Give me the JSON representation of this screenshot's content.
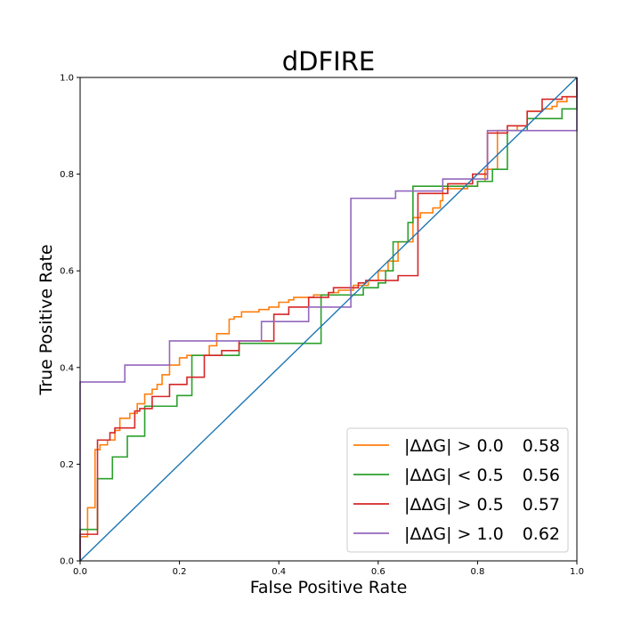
{
  "chart_data": {
    "type": "line",
    "title": "dDFIRE",
    "xlabel": "False Positive Rate",
    "ylabel": "True Positive Rate",
    "xlim": [
      0,
      1
    ],
    "ylim": [
      0,
      1
    ],
    "x_ticks": [
      "0.0",
      "0.2",
      "0.4",
      "0.6",
      "0.8",
      "1.0"
    ],
    "y_ticks": [
      "0.0",
      "0.2",
      "0.4",
      "0.6",
      "0.8",
      "1.0"
    ],
    "grid": false,
    "legend_position": "lower-right",
    "diagonal": {
      "color": "#1f77b4",
      "points": [
        [
          0,
          0
        ],
        [
          1,
          1
        ]
      ]
    },
    "series": [
      {
        "name": "|ΔΔG| > 0.0",
        "score": "0.58",
        "color": "#ff7f0e",
        "points": [
          [
            0,
            0
          ],
          [
            0,
            0.05
          ],
          [
            0.015,
            0.05
          ],
          [
            0.015,
            0.11
          ],
          [
            0.03,
            0.11
          ],
          [
            0.03,
            0.23
          ],
          [
            0.04,
            0.23
          ],
          [
            0.04,
            0.24
          ],
          [
            0.055,
            0.24
          ],
          [
            0.055,
            0.25
          ],
          [
            0.07,
            0.25
          ],
          [
            0.07,
            0.27
          ],
          [
            0.08,
            0.27
          ],
          [
            0.08,
            0.295
          ],
          [
            0.1,
            0.295
          ],
          [
            0.1,
            0.305
          ],
          [
            0.115,
            0.305
          ],
          [
            0.115,
            0.325
          ],
          [
            0.13,
            0.325
          ],
          [
            0.13,
            0.345
          ],
          [
            0.145,
            0.345
          ],
          [
            0.145,
            0.355
          ],
          [
            0.155,
            0.355
          ],
          [
            0.155,
            0.365
          ],
          [
            0.165,
            0.365
          ],
          [
            0.165,
            0.385
          ],
          [
            0.18,
            0.385
          ],
          [
            0.18,
            0.405
          ],
          [
            0.2,
            0.405
          ],
          [
            0.2,
            0.42
          ],
          [
            0.215,
            0.42
          ],
          [
            0.215,
            0.425
          ],
          [
            0.26,
            0.425
          ],
          [
            0.26,
            0.445
          ],
          [
            0.275,
            0.445
          ],
          [
            0.275,
            0.47
          ],
          [
            0.3,
            0.47
          ],
          [
            0.3,
            0.5
          ],
          [
            0.31,
            0.5
          ],
          [
            0.31,
            0.505
          ],
          [
            0.325,
            0.505
          ],
          [
            0.325,
            0.515
          ],
          [
            0.36,
            0.515
          ],
          [
            0.36,
            0.52
          ],
          [
            0.38,
            0.52
          ],
          [
            0.38,
            0.525
          ],
          [
            0.4,
            0.525
          ],
          [
            0.4,
            0.535
          ],
          [
            0.42,
            0.535
          ],
          [
            0.42,
            0.54
          ],
          [
            0.43,
            0.54
          ],
          [
            0.43,
            0.545
          ],
          [
            0.47,
            0.545
          ],
          [
            0.47,
            0.55
          ],
          [
            0.5,
            0.55
          ],
          [
            0.5,
            0.555
          ],
          [
            0.52,
            0.555
          ],
          [
            0.52,
            0.56
          ],
          [
            0.55,
            0.56
          ],
          [
            0.55,
            0.57
          ],
          [
            0.58,
            0.57
          ],
          [
            0.58,
            0.58
          ],
          [
            0.6,
            0.58
          ],
          [
            0.6,
            0.6
          ],
          [
            0.62,
            0.6
          ],
          [
            0.62,
            0.62
          ],
          [
            0.64,
            0.62
          ],
          [
            0.64,
            0.66
          ],
          [
            0.67,
            0.66
          ],
          [
            0.67,
            0.71
          ],
          [
            0.685,
            0.71
          ],
          [
            0.685,
            0.72
          ],
          [
            0.71,
            0.72
          ],
          [
            0.71,
            0.73
          ],
          [
            0.725,
            0.73
          ],
          [
            0.725,
            0.745
          ],
          [
            0.73,
            0.745
          ],
          [
            0.73,
            0.77
          ],
          [
            0.78,
            0.77
          ],
          [
            0.78,
            0.775
          ],
          [
            0.8,
            0.775
          ],
          [
            0.8,
            0.785
          ],
          [
            0.815,
            0.785
          ],
          [
            0.815,
            0.81
          ],
          [
            0.84,
            0.81
          ],
          [
            0.84,
            0.89
          ],
          [
            0.88,
            0.89
          ],
          [
            0.88,
            0.9
          ],
          [
            0.9,
            0.9
          ],
          [
            0.9,
            0.93
          ],
          [
            0.93,
            0.93
          ],
          [
            0.93,
            0.935
          ],
          [
            0.95,
            0.935
          ],
          [
            0.95,
            0.94
          ],
          [
            0.96,
            0.94
          ],
          [
            0.96,
            0.95
          ],
          [
            0.98,
            0.95
          ],
          [
            0.98,
            0.96
          ],
          [
            1.0,
            0.96
          ],
          [
            1.0,
            1.0
          ]
        ]
      },
      {
        "name": "|ΔΔG| < 0.5",
        "score": "0.56",
        "color": "#2ca02c",
        "points": [
          [
            0,
            0
          ],
          [
            0,
            0.065
          ],
          [
            0.035,
            0.065
          ],
          [
            0.035,
            0.17
          ],
          [
            0.065,
            0.17
          ],
          [
            0.065,
            0.215
          ],
          [
            0.095,
            0.215
          ],
          [
            0.095,
            0.258
          ],
          [
            0.13,
            0.258
          ],
          [
            0.13,
            0.32
          ],
          [
            0.195,
            0.32
          ],
          [
            0.195,
            0.342
          ],
          [
            0.225,
            0.342
          ],
          [
            0.225,
            0.425
          ],
          [
            0.32,
            0.425
          ],
          [
            0.32,
            0.45
          ],
          [
            0.36,
            0.45
          ],
          [
            0.36,
            0.45
          ],
          [
            0.485,
            0.45
          ],
          [
            0.485,
            0.55
          ],
          [
            0.57,
            0.55
          ],
          [
            0.57,
            0.565
          ],
          [
            0.6,
            0.565
          ],
          [
            0.6,
            0.575
          ],
          [
            0.615,
            0.575
          ],
          [
            0.615,
            0.6
          ],
          [
            0.63,
            0.6
          ],
          [
            0.63,
            0.66
          ],
          [
            0.66,
            0.66
          ],
          [
            0.66,
            0.7
          ],
          [
            0.67,
            0.7
          ],
          [
            0.67,
            0.775
          ],
          [
            0.8,
            0.775
          ],
          [
            0.8,
            0.785
          ],
          [
            0.83,
            0.785
          ],
          [
            0.83,
            0.81
          ],
          [
            0.86,
            0.81
          ],
          [
            0.86,
            0.89
          ],
          [
            0.9,
            0.89
          ],
          [
            0.9,
            0.915
          ],
          [
            0.97,
            0.915
          ],
          [
            0.97,
            0.935
          ],
          [
            1.0,
            0.935
          ],
          [
            1.0,
            1.0
          ]
        ]
      },
      {
        "name": "|ΔΔG| > 0.5",
        "score": "0.57",
        "color": "#d62728",
        "points": [
          [
            0,
            0
          ],
          [
            0,
            0.055
          ],
          [
            0.035,
            0.055
          ],
          [
            0.035,
            0.25
          ],
          [
            0.06,
            0.25
          ],
          [
            0.06,
            0.265
          ],
          [
            0.07,
            0.265
          ],
          [
            0.07,
            0.275
          ],
          [
            0.11,
            0.275
          ],
          [
            0.11,
            0.31
          ],
          [
            0.12,
            0.31
          ],
          [
            0.12,
            0.315
          ],
          [
            0.145,
            0.315
          ],
          [
            0.145,
            0.34
          ],
          [
            0.18,
            0.34
          ],
          [
            0.18,
            0.365
          ],
          [
            0.215,
            0.365
          ],
          [
            0.215,
            0.38
          ],
          [
            0.25,
            0.38
          ],
          [
            0.25,
            0.425
          ],
          [
            0.285,
            0.425
          ],
          [
            0.285,
            0.435
          ],
          [
            0.32,
            0.435
          ],
          [
            0.32,
            0.455
          ],
          [
            0.39,
            0.455
          ],
          [
            0.39,
            0.51
          ],
          [
            0.42,
            0.51
          ],
          [
            0.42,
            0.525
          ],
          [
            0.46,
            0.525
          ],
          [
            0.46,
            0.545
          ],
          [
            0.5,
            0.545
          ],
          [
            0.5,
            0.555
          ],
          [
            0.51,
            0.555
          ],
          [
            0.51,
            0.565
          ],
          [
            0.56,
            0.565
          ],
          [
            0.56,
            0.575
          ],
          [
            0.575,
            0.575
          ],
          [
            0.575,
            0.58
          ],
          [
            0.64,
            0.58
          ],
          [
            0.64,
            0.59
          ],
          [
            0.68,
            0.59
          ],
          [
            0.68,
            0.76
          ],
          [
            0.74,
            0.76
          ],
          [
            0.74,
            0.78
          ],
          [
            0.79,
            0.78
          ],
          [
            0.79,
            0.8
          ],
          [
            0.82,
            0.8
          ],
          [
            0.82,
            0.885
          ],
          [
            0.86,
            0.885
          ],
          [
            0.86,
            0.9
          ],
          [
            0.9,
            0.9
          ],
          [
            0.9,
            0.93
          ],
          [
            0.93,
            0.93
          ],
          [
            0.93,
            0.955
          ],
          [
            0.97,
            0.955
          ],
          [
            0.97,
            0.96
          ],
          [
            1.0,
            0.96
          ],
          [
            1.0,
            1.0
          ]
        ]
      },
      {
        "name": "|ΔΔG| > 1.0",
        "score": "0.62",
        "color": "#9467bd",
        "points": [
          [
            0,
            0
          ],
          [
            0,
            0.37
          ],
          [
            0.09,
            0.37
          ],
          [
            0.09,
            0.405
          ],
          [
            0.18,
            0.405
          ],
          [
            0.18,
            0.455
          ],
          [
            0.365,
            0.455
          ],
          [
            0.365,
            0.495
          ],
          [
            0.46,
            0.495
          ],
          [
            0.46,
            0.525
          ],
          [
            0.545,
            0.525
          ],
          [
            0.545,
            0.75
          ],
          [
            0.635,
            0.75
          ],
          [
            0.635,
            0.765
          ],
          [
            0.73,
            0.765
          ],
          [
            0.73,
            0.79
          ],
          [
            0.82,
            0.79
          ],
          [
            0.82,
            0.89
          ],
          [
            0.91,
            0.89
          ],
          [
            0.91,
            0.89
          ],
          [
            1.0,
            0.89
          ],
          [
            1.0,
            1.0
          ]
        ]
      }
    ]
  }
}
